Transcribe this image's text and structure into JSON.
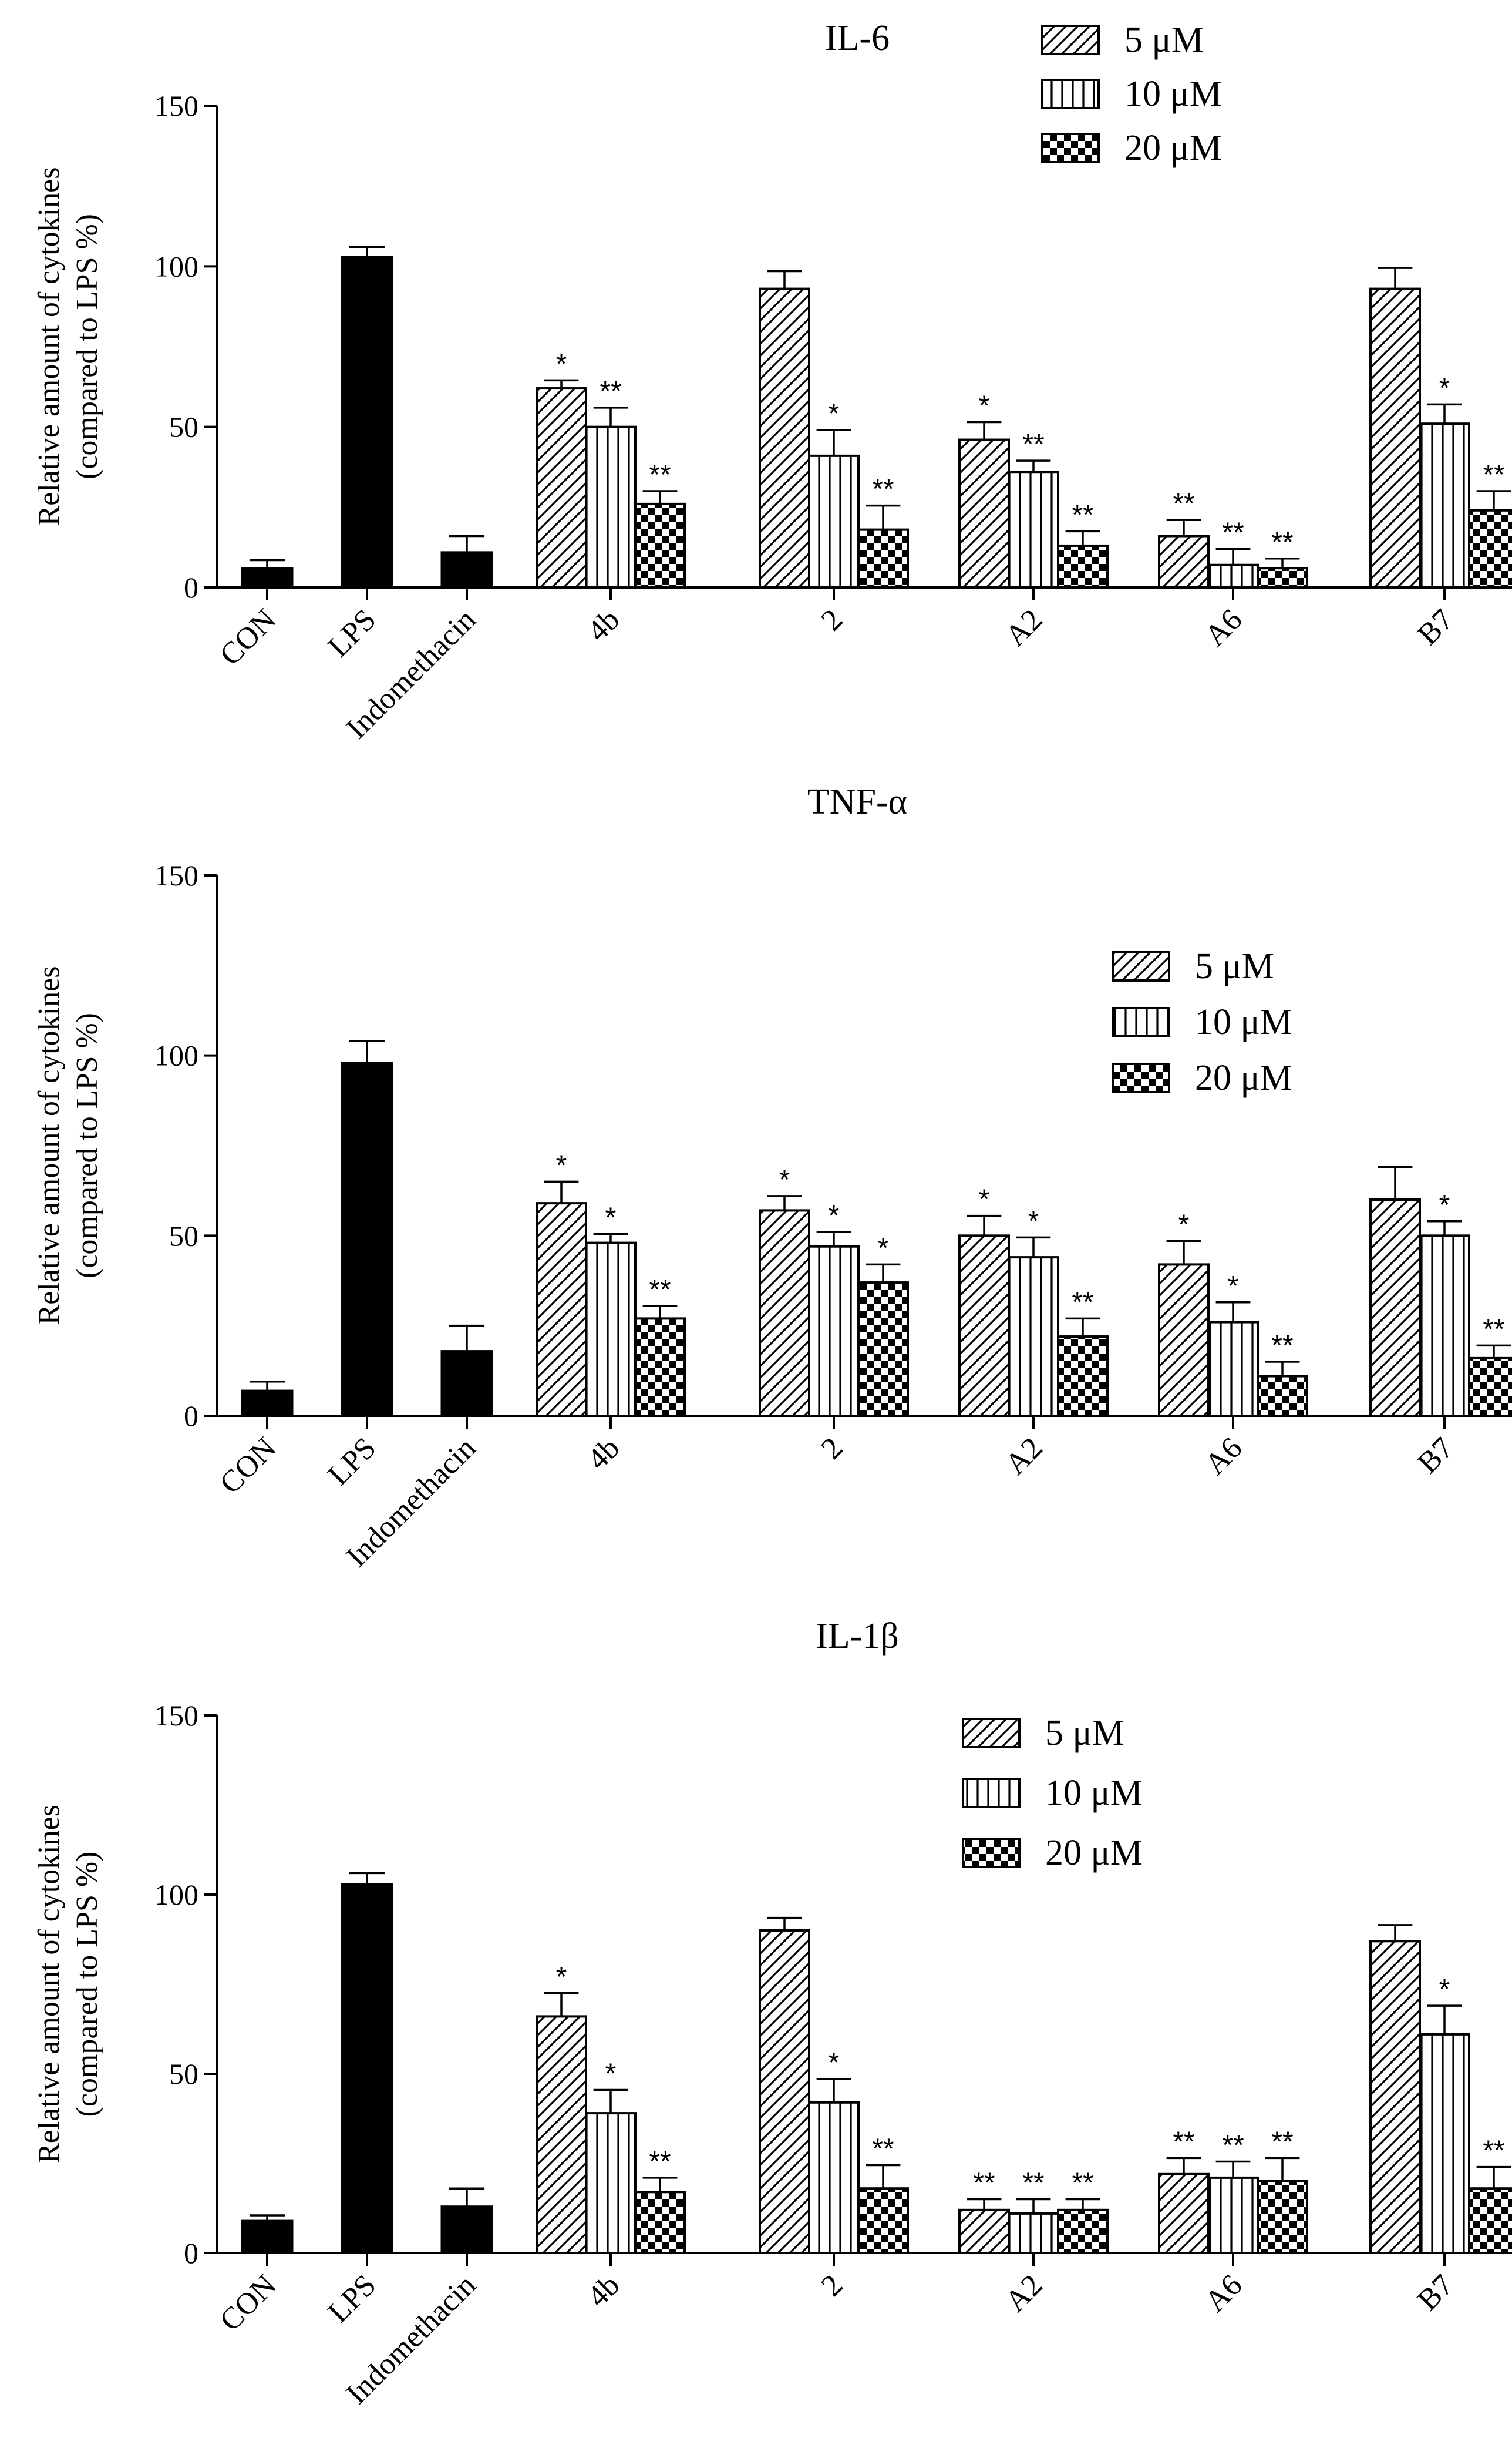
{
  "legend_labels": [
    "5 μM",
    "10 μM",
    "20 μM"
  ],
  "chart_data": [
    {
      "type": "bar",
      "title": "IL-6",
      "ylabel_line1": "Relative amount of cytokines",
      "ylabel_line2": "(compared to LPS %)",
      "ylim": [
        0,
        150
      ],
      "yticks": [
        0,
        50,
        100,
        150
      ],
      "legend_position": "top-right",
      "control_categories": [
        "CON",
        "LPS",
        "Indomethacin"
      ],
      "controls": [
        {
          "value": 6,
          "error": 2.5
        },
        {
          "value": 103,
          "error": 3
        },
        {
          "value": 11,
          "error": 5
        }
      ],
      "groups": [
        "4b",
        "2",
        "A2",
        "A6",
        "B7"
      ],
      "series": [
        {
          "name": "5 μM",
          "values": [
            62,
            93,
            46,
            16,
            93
          ],
          "errors": [
            2.5,
            5.5,
            5.5,
            5,
            6.5
          ],
          "sig": [
            "*",
            "",
            "*",
            "**",
            ""
          ]
        },
        {
          "name": "10 μM",
          "values": [
            50,
            41,
            36,
            7,
            51
          ],
          "errors": [
            6,
            8,
            3.5,
            5,
            6
          ],
          "sig": [
            "**",
            "*",
            "**",
            "**",
            "*"
          ]
        },
        {
          "name": "20 μM",
          "values": [
            26,
            18,
            13,
            6,
            24
          ],
          "errors": [
            4,
            7.5,
            4.5,
            3,
            6
          ],
          "sig": [
            "**",
            "**",
            "**",
            "**",
            "**"
          ]
        }
      ]
    },
    {
      "type": "bar",
      "title": "TNF-α",
      "ylabel_line1": "Relative amount of cytokines",
      "ylabel_line2": "(compared to LPS %)",
      "ylim": [
        0,
        150
      ],
      "yticks": [
        0,
        50,
        100,
        150
      ],
      "legend_position": "right",
      "control_categories": [
        "CON",
        "LPS",
        "Indomethacin"
      ],
      "controls": [
        {
          "value": 7,
          "error": 2.5
        },
        {
          "value": 98,
          "error": 6
        },
        {
          "value": 18,
          "error": 7
        }
      ],
      "groups": [
        "4b",
        "2",
        "A2",
        "A6",
        "B7"
      ],
      "series": [
        {
          "name": "5 μM",
          "values": [
            59,
            57,
            50,
            42,
            60
          ],
          "errors": [
            6,
            4,
            5.5,
            6.5,
            9
          ],
          "sig": [
            "*",
            "*",
            "*",
            "*",
            ""
          ]
        },
        {
          "name": "10 μM",
          "values": [
            48,
            47,
            44,
            26,
            50
          ],
          "errors": [
            2.5,
            4,
            5.5,
            5.5,
            4
          ],
          "sig": [
            "*",
            "*",
            "*",
            "*",
            "*"
          ]
        },
        {
          "name": "20 μM",
          "values": [
            27,
            37,
            22,
            11,
            16
          ],
          "errors": [
            3.5,
            5,
            5,
            4,
            3.5
          ],
          "sig": [
            "**",
            "*",
            "**",
            "**",
            "**"
          ]
        }
      ]
    },
    {
      "type": "bar",
      "title": "IL-1β",
      "ylabel_line1": "Relative amount of cytokines",
      "ylabel_line2": "(compared to LPS %)",
      "ylim": [
        0,
        150
      ],
      "yticks": [
        0,
        50,
        100,
        150
      ],
      "legend_position": "top-right",
      "control_categories": [
        "CON",
        "LPS",
        "Indomethacin"
      ],
      "controls": [
        {
          "value": 9,
          "error": 1.5
        },
        {
          "value": 103,
          "error": 3
        },
        {
          "value": 13,
          "error": 5
        }
      ],
      "groups": [
        "4b",
        "2",
        "A2",
        "A6",
        "B7"
      ],
      "series": [
        {
          "name": "5 μM",
          "values": [
            66,
            90,
            12,
            22,
            87
          ],
          "errors": [
            6.5,
            3.5,
            3,
            4.5,
            4.5
          ],
          "sig": [
            "*",
            "",
            "**",
            "**",
            ""
          ]
        },
        {
          "name": "10 μM",
          "values": [
            39,
            42,
            11,
            21,
            61
          ],
          "errors": [
            6.5,
            6.5,
            4,
            4.5,
            8
          ],
          "sig": [
            "*",
            "*",
            "**",
            "**",
            "*"
          ]
        },
        {
          "name": "20 μM",
          "values": [
            17,
            18,
            12,
            20,
            18
          ],
          "errors": [
            4,
            6.5,
            3,
            6.5,
            6
          ],
          "sig": [
            "**",
            "**",
            "**",
            "**",
            "**"
          ]
        }
      ]
    }
  ]
}
